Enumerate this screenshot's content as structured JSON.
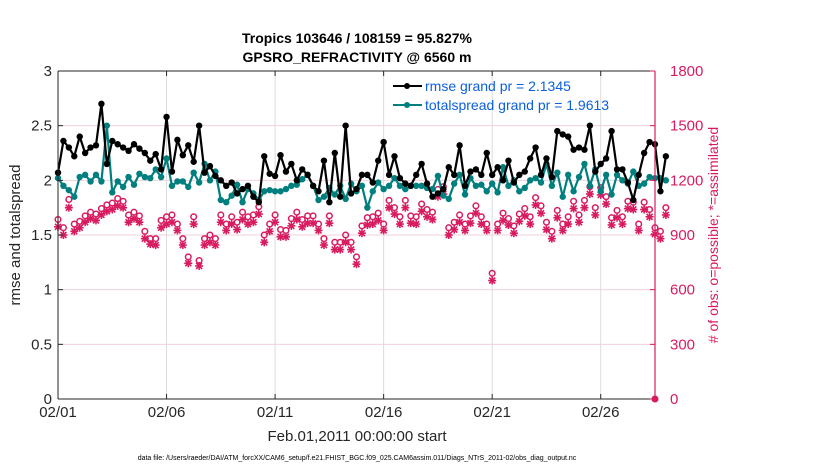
{
  "chart_data": {
    "type": "line",
    "title_line1": "Tropics 103646 / 108159 = 95.827%",
    "title_line2": "GPSRO_REFRACTIVITY @ 6560 m",
    "xlabel": "Feb.01,2011 00:00:00 start",
    "ylabel_left": "rmse and totalspread",
    "ylabel_right": "# of obs: o=possible; *=assimilated",
    "footer": "data file: /Users/raeder/DAI/ATM_forcXX/CAM6_setup/f.e21.FHIST_BGC.f09_025.CAM6assim.011/Diags_NTrS_2011-02/obs_diag_output.nc",
    "x_ticks": [
      "02/01",
      "02/06",
      "02/11",
      "02/16",
      "02/21",
      "02/26"
    ],
    "x_tick_days": [
      0,
      5,
      10,
      15,
      20,
      25
    ],
    "x_range_days": [
      0,
      27.5
    ],
    "x_step_days": 0.25,
    "ylim_left": [
      0,
      3
    ],
    "y_ticks_left": [
      "0",
      "0.5",
      "1",
      "1.5",
      "2",
      "2.5",
      "3"
    ],
    "ylim_right": [
      0,
      1800
    ],
    "y_ticks_right": [
      "0",
      "300",
      "600",
      "900",
      "1200",
      "1500",
      "1800"
    ],
    "colors": {
      "rmse": "#000000",
      "spread": "#007f7f",
      "obs": "#d81b60",
      "legend_text": "#0b5fe0",
      "grid": "#f0d0dc"
    },
    "legend": [
      {
        "label": "rmse grand pr = 2.1345",
        "series": "rmse"
      },
      {
        "label": "totalspread grand pr = 1.9613",
        "series": "spread"
      }
    ],
    "legend_position": "top-right",
    "series": [
      {
        "name": "rmse",
        "values": [
          2.07,
          2.36,
          2.3,
          2.22,
          2.4,
          2.25,
          2.3,
          2.32,
          2.7,
          2.15,
          2.36,
          2.33,
          2.3,
          2.27,
          2.33,
          2.29,
          2.25,
          2.18,
          2.24,
          2.1,
          2.58,
          2.08,
          2.37,
          2.23,
          2.32,
          2.17,
          2.5,
          2.07,
          2.13,
          2.04,
          2.0,
          1.95,
          1.98,
          1.88,
          1.92,
          1.95,
          1.85,
          1.8,
          2.22,
          2.06,
          2.04,
          2.23,
          2.08,
          2.15,
          2.0,
          2.1,
          2.05,
          1.95,
          1.9,
          2.18,
          1.8,
          2.25,
          1.85,
          2.5,
          1.88,
          1.92,
          2.05,
          2.05,
          1.98,
          2.18,
          2.35,
          2.05,
          2.22,
          2.02,
          1.97,
          1.95,
          2.05,
          2.15,
          1.97,
          1.85,
          1.88,
          1.92,
          2.12,
          2.05,
          2.32,
          1.95,
          2.08,
          2.1,
          2.05,
          2.25,
          2.05,
          2.12,
          2.0,
          2.18,
          1.98,
          2.05,
          2.08,
          2.2,
          2.3,
          2.05,
          2.2,
          2.03,
          2.45,
          2.42,
          2.4,
          2.28,
          2.3,
          2.28,
          2.5,
          2.08,
          2.15,
          2.2,
          2.45,
          2.1,
          2.1,
          1.98,
          1.82,
          2.05,
          2.25,
          2.35,
          2.33,
          1.9,
          2.22
        ],
        "markers": true
      },
      {
        "name": "totalspread",
        "values": [
          2.02,
          1.95,
          1.91,
          1.85,
          2.03,
          2.05,
          1.99,
          2.05,
          1.99,
          2.5,
          1.89,
          1.99,
          1.94,
          2.03,
          1.96,
          2.06,
          2.03,
          2.02,
          2.1,
          2.03,
          2.2,
          1.95,
          1.99,
          1.99,
          1.94,
          2.07,
          1.98,
          2.15,
          2.0,
          2.08,
          1.82,
          1.8,
          1.86,
          1.96,
          1.8,
          1.92,
          1.88,
          1.82,
          1.9,
          1.91,
          1.9,
          1.9,
          1.92,
          1.95,
          1.96,
          2.01,
          2.05,
          1.95,
          1.82,
          1.85,
          1.93,
          1.87,
          1.95,
          1.83,
          1.97,
          1.9,
          1.95,
          1.75,
          1.9,
          1.98,
          1.92,
          1.95,
          2.02,
          1.95,
          1.92,
          1.95,
          1.95,
          1.95,
          1.93,
          1.92,
          2.04,
          1.86,
          1.83,
          1.97,
          2.05,
          1.87,
          2.02,
          1.95,
          1.96,
          1.9,
          1.97,
          1.89,
          2.12,
          1.95,
          2.0,
          1.9,
          1.93,
          2.0,
          2.02,
          1.98,
          2.15,
          1.95,
          2.07,
          1.85,
          2.05,
          1.9,
          2.03,
          2.15,
          1.95,
          2.1,
          1.9,
          2.05,
          1.87,
          2.05,
          2.0,
          1.97,
          2.08,
          1.95,
          1.97,
          2.03,
          2.02,
          2.02,
          2.0
        ],
        "markers": true
      },
      {
        "name": "obs_possible",
        "axis": "right",
        "values": [
          985,
          940,
          1095,
          960,
          975,
          1005,
          1025,
          1015,
          1045,
          1065,
          1075,
          1100,
          1085,
          1010,
          1025,
          1005,
          920,
          880,
          880,
          980,
          1000,
          1010,
          960,
          880,
          780,
          1000,
          760,
          880,
          900,
          880,
          1010,
          960,
          1000,
          970,
          1025,
          1000,
          1010,
          1055,
          900,
          960,
          1010,
          930,
          925,
          990,
          1025,
          985,
          1005,
          1005,
          960,
          880,
          1005,
          860,
          860,
          900,
          860,
          780,
          950,
          995,
          1000,
          1020,
          960,
          1090,
          1050,
          1000,
          1090,
          1005,
          1000,
          1070,
          1040,
          1025,
          1150,
          1165,
          940,
          970,
          1010,
          960,
          1005,
          1060,
          1000,
          960,
          690,
          960,
          1020,
          990,
          950,
          1015,
          1045,
          1000,
          1105,
          1060,
          970,
          920,
          1035,
          960,
          1000,
          1085,
          1010,
          1090,
          1165,
          1050,
          1160,
          1110,
          995,
          1035,
          1000,
          1085,
          1080,
          960,
          1080,
          1040,
          940,
          920,
          1050
        ],
        "markers": "o"
      },
      {
        "name": "obs_assimilated",
        "axis": "right",
        "values": [
          945,
          900,
          1050,
          920,
          940,
          970,
          990,
          980,
          1010,
          1030,
          1040,
          1060,
          1050,
          970,
          990,
          970,
          880,
          850,
          845,
          940,
          960,
          970,
          925,
          845,
          745,
          960,
          730,
          845,
          860,
          845,
          970,
          925,
          960,
          930,
          985,
          960,
          970,
          1015,
          860,
          920,
          970,
          890,
          890,
          950,
          985,
          945,
          965,
          965,
          925,
          845,
          965,
          820,
          820,
          860,
          820,
          740,
          910,
          955,
          960,
          980,
          925,
          1050,
          1015,
          960,
          1050,
          965,
          960,
          1030,
          1000,
          985,
          1110,
          1125,
          900,
          930,
          970,
          925,
          965,
          1020,
          960,
          925,
          650,
          925,
          980,
          955,
          910,
          975,
          1005,
          960,
          1065,
          1020,
          930,
          880,
          995,
          925,
          960,
          1045,
          970,
          1050,
          1125,
          1010,
          1120,
          1070,
          955,
          995,
          960,
          1045,
          1040,
          925,
          1040,
          1000,
          905,
          880,
          1010
        ],
        "markers": "*"
      }
    ]
  }
}
